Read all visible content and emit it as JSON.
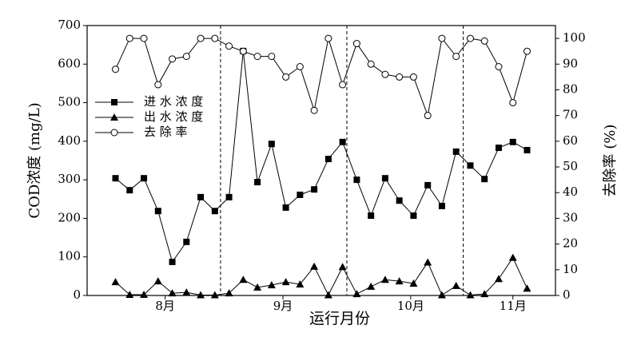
{
  "chart_data": {
    "type": "line",
    "x_label": "运行月份",
    "y_label": "COD浓度 (mg/L)",
    "y2_label": "去除率 (%)",
    "x": [
      1,
      2,
      3,
      4,
      5,
      6,
      7,
      8,
      9,
      10,
      11,
      12,
      13,
      14,
      15,
      16,
      17,
      18,
      19,
      20,
      21,
      22,
      23,
      24,
      25,
      26,
      27,
      28,
      29,
      30
    ],
    "xlim": [
      -1,
      32
    ],
    "xticks": [
      {
        "value": 4.5,
        "label": "8月"
      },
      {
        "value": 12.8,
        "label": "9月"
      },
      {
        "value": 21.8,
        "label": "10月"
      },
      {
        "value": 29,
        "label": "11月"
      }
    ],
    "vlines": [
      8.4,
      17.3,
      25.5
    ],
    "ylim": [
      0,
      700
    ],
    "yticks": [
      0,
      100,
      200,
      300,
      400,
      500,
      600,
      700
    ],
    "y2lim": [
      0,
      105
    ],
    "y2ticks": [
      0,
      10,
      20,
      30,
      40,
      50,
      60,
      70,
      80,
      90,
      100
    ],
    "legend": "upper-left",
    "series": [
      {
        "name": "进 水 浓 度",
        "color": "#000000",
        "marker": "square",
        "values": [
          304,
          273,
          304,
          219,
          87,
          139,
          255,
          219,
          255,
          634,
          294,
          393,
          228,
          261,
          275,
          354,
          398,
          300,
          207,
          304,
          246,
          207,
          286,
          232,
          373,
          337,
          302,
          383,
          398,
          377
        ]
      },
      {
        "name": "出 水 浓 度",
        "color": "#000000",
        "marker": "triangle",
        "values": [
          35,
          2,
          2,
          37,
          6,
          8,
          1,
          1,
          6,
          41,
          21,
          27,
          35,
          29,
          75,
          1,
          74,
          4,
          23,
          41,
          37,
          31,
          86,
          1,
          25,
          1,
          4,
          43,
          98,
          18
        ]
      },
      {
        "name": "去 除 率",
        "color": "#000000",
        "marker": "circle",
        "axis": "y2",
        "values": [
          88,
          100,
          100,
          82,
          92,
          93,
          100,
          100,
          97,
          95,
          93,
          93,
          85,
          89,
          72,
          100,
          82,
          98,
          90,
          86,
          85,
          85,
          70,
          100,
          93,
          100,
          99,
          89,
          75,
          95
        ]
      }
    ]
  }
}
